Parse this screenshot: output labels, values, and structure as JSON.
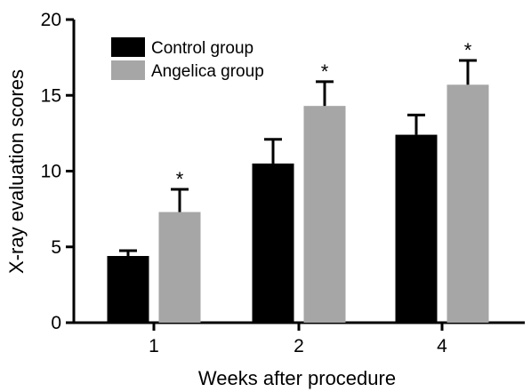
{
  "chart_data": {
    "type": "bar",
    "categories": [
      "1",
      "2",
      "4"
    ],
    "series": [
      {
        "name": "Control group",
        "color": "#000000",
        "values": [
          4.4,
          10.5,
          12.4
        ],
        "errors": [
          0.35,
          1.6,
          1.3
        ]
      },
      {
        "name": "Angelica group",
        "color": "#a6a6a6",
        "values": [
          7.3,
          14.3,
          15.7
        ],
        "errors": [
          1.5,
          1.6,
          1.6
        ]
      }
    ],
    "significance": [
      "*",
      "*",
      "*"
    ],
    "xlabel": "Weeks after procedure",
    "ylabel": "X-ray evaluation scores",
    "ylim": [
      0,
      20
    ],
    "yticks": [
      0,
      5,
      10,
      15,
      20
    ],
    "legend": "top-left",
    "grid": false
  }
}
